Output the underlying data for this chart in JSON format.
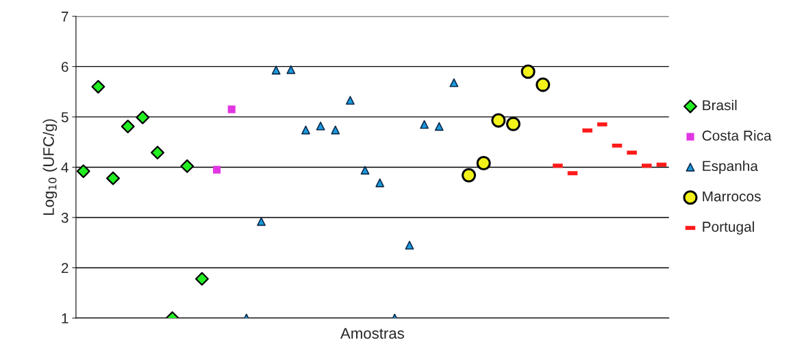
{
  "chart_data": {
    "type": "scatter",
    "xlabel": "Amostras",
    "ylabel": "Log$_{10}$ (UFC/g)",
    "categories": [
      null,
      null,
      null,
      null,
      null,
      null,
      null,
      null,
      null,
      null,
      null,
      null,
      null,
      null,
      null,
      null,
      null,
      null,
      null,
      null,
      null,
      null,
      null,
      null,
      null,
      null,
      null,
      null,
      null,
      null,
      null,
      null,
      null,
      null,
      null,
      null,
      null,
      null,
      null,
      null
    ],
    "series": [
      {
        "name": "Brasil",
        "color": "#22ee22",
        "marker": "diamond",
        "values": [
          3.92,
          5.6,
          3.78,
          4.81,
          4.99,
          4.29,
          1.0,
          4.02,
          1.78,
          null,
          null,
          null,
          null,
          null,
          null,
          null,
          null,
          null,
          null,
          null,
          null,
          null,
          null,
          null,
          null,
          null,
          null,
          null,
          null,
          null,
          null,
          null,
          null,
          null,
          null,
          null,
          null,
          null,
          null,
          null
        ]
      },
      {
        "name": "Costa Rica",
        "color": "#e236e2",
        "marker": "square",
        "values": [
          null,
          null,
          null,
          null,
          null,
          null,
          null,
          null,
          null,
          3.95,
          5.15,
          null,
          null,
          null,
          null,
          null,
          null,
          null,
          null,
          null,
          null,
          null,
          null,
          null,
          null,
          null,
          null,
          null,
          null,
          null,
          null,
          null,
          null,
          null,
          null,
          null,
          null,
          null,
          null,
          null
        ]
      },
      {
        "name": "Espanha",
        "color": "#1a9be0",
        "marker": "triangle",
        "values": [
          null,
          null,
          null,
          null,
          null,
          null,
          null,
          null,
          null,
          null,
          null,
          1.0,
          2.92,
          5.93,
          5.94,
          4.74,
          4.82,
          4.74,
          5.33,
          3.94,
          3.69,
          1.0,
          2.45,
          4.85,
          4.81,
          5.68,
          null,
          null,
          null,
          null,
          null,
          null,
          null,
          null,
          null,
          null,
          null,
          null,
          null,
          null
        ]
      },
      {
        "name": "Marrocos",
        "color": "#f2f21a",
        "marker": "circle",
        "values": [
          null,
          null,
          null,
          null,
          null,
          null,
          null,
          null,
          null,
          null,
          null,
          null,
          null,
          null,
          null,
          null,
          null,
          null,
          null,
          null,
          null,
          null,
          null,
          null,
          null,
          null,
          3.84,
          4.08,
          4.93,
          4.86,
          5.9,
          5.64,
          null,
          null,
          null,
          null,
          null,
          null,
          null,
          null
        ]
      },
      {
        "name": "Portugal",
        "color": "#ff1a1a",
        "values": [
          null,
          null,
          null,
          null,
          null,
          null,
          null,
          null,
          null,
          null,
          null,
          null,
          null,
          null,
          null,
          null,
          null,
          null,
          null,
          null,
          null,
          null,
          null,
          null,
          null,
          null,
          null,
          null,
          null,
          null,
          null,
          null,
          4.03,
          3.88,
          4.73,
          4.85,
          4.43,
          4.29,
          4.03,
          4.05
        ]
      }
    ],
    "ylim": [
      1,
      7
    ],
    "yticks": [
      1,
      2,
      3,
      4,
      5,
      6,
      7
    ],
    "grid": "y",
    "legend": "right"
  }
}
